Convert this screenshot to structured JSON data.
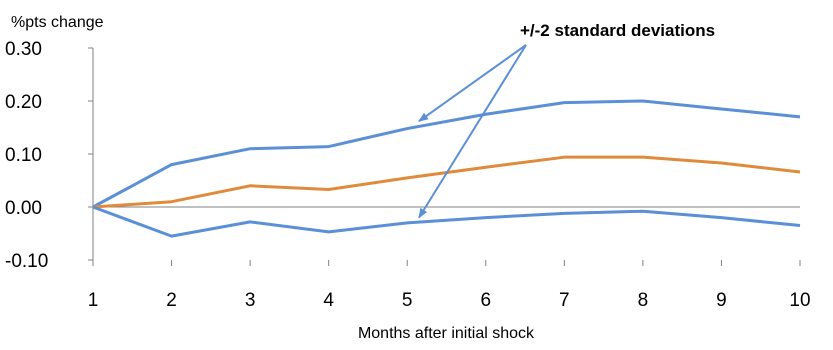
{
  "chart_data": {
    "type": "line",
    "x": [
      1,
      2,
      3,
      4,
      5,
      6,
      7,
      8,
      9,
      10
    ],
    "xlabel": "Months after initial shock",
    "ylabel": "%pts change",
    "ylim": [
      -0.1,
      0.3
    ],
    "yticks": [
      "0.30",
      "0.20",
      "0.10",
      "0.00",
      "-0.10"
    ],
    "xticks": [
      "1",
      "2",
      "3",
      "4",
      "5",
      "6",
      "7",
      "8",
      "9",
      "10"
    ],
    "grid": false,
    "series": [
      {
        "role": "upper band",
        "color": "#5B8FD6",
        "values": [
          0.0,
          0.08,
          0.11,
          0.114,
          0.148,
          0.175,
          0.197,
          0.2,
          0.185,
          0.17
        ]
      },
      {
        "role": "estimate",
        "color": "#E08A3C",
        "values": [
          0.0,
          0.01,
          0.04,
          0.033,
          0.055,
          0.075,
          0.094,
          0.094,
          0.083,
          0.066
        ]
      },
      {
        "role": "lower band",
        "color": "#5B8FD6",
        "values": [
          0.0,
          -0.055,
          -0.028,
          -0.047,
          -0.03,
          -0.02,
          -0.012,
          -0.008,
          -0.02,
          -0.035
        ]
      }
    ],
    "annotation": {
      "text": "+/-2 standard deviations",
      "arrow_targets": [
        {
          "x": 5.15,
          "y": 0.162
        },
        {
          "x": 5.15,
          "y": -0.02
        }
      ]
    }
  }
}
